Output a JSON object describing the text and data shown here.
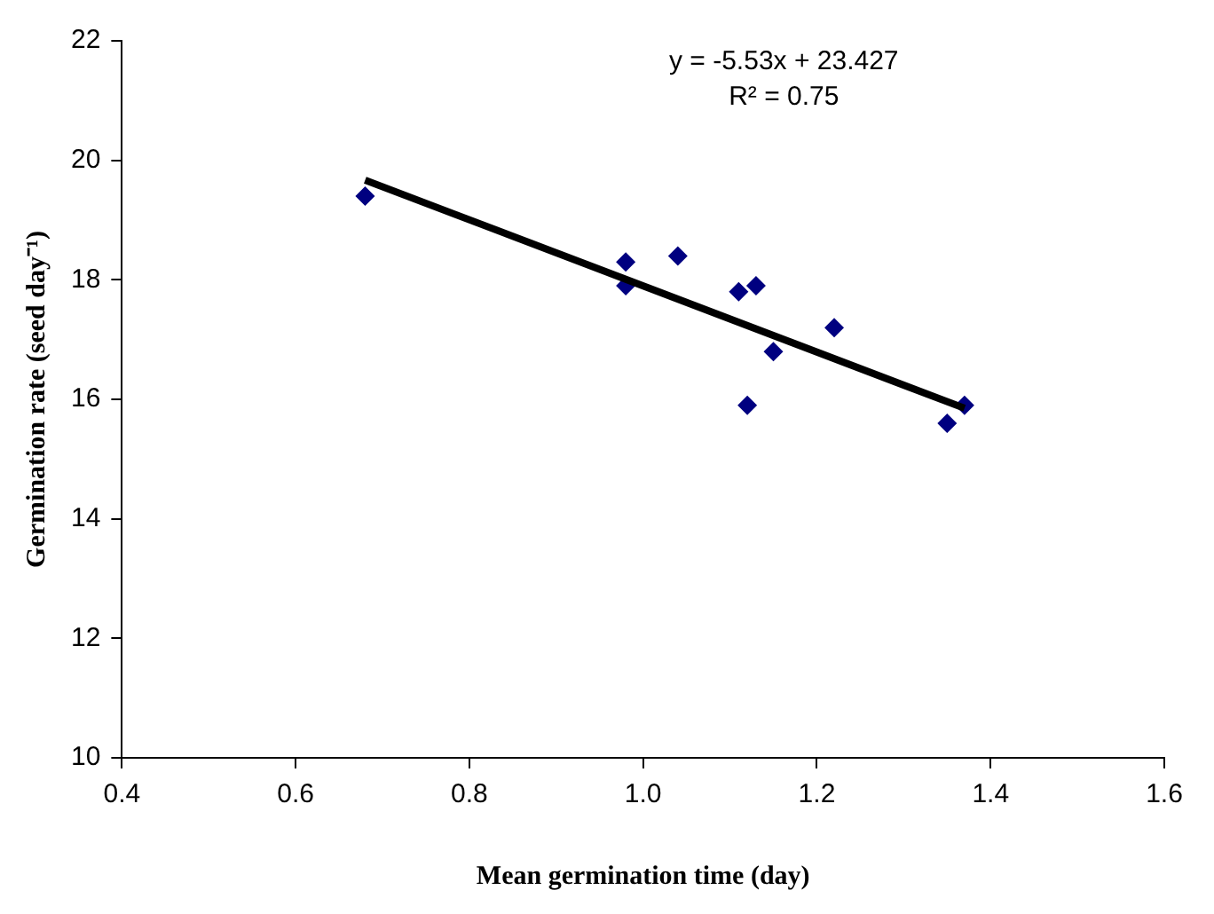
{
  "chart_data": {
    "type": "scatter",
    "xlabel": "Mean germination time (day)",
    "ylabel": "Germination rate (seed day⁻¹)",
    "annotations": [
      "y = -5.53x + 23.427",
      "R² = 0.75"
    ],
    "xlim": [
      0.4,
      1.6
    ],
    "xticks": [
      {
        "value": 0.4,
        "label": "0.4"
      },
      {
        "value": 0.6,
        "label": "0.6"
      },
      {
        "value": 0.8,
        "label": "0.8"
      },
      {
        "value": 1.0,
        "label": "1.0"
      },
      {
        "value": 1.2,
        "label": "1.2"
      },
      {
        "value": 1.4,
        "label": "1.4"
      },
      {
        "value": 1.6,
        "label": "1.6"
      }
    ],
    "ylim": [
      10,
      22
    ],
    "yticks": [
      10,
      12,
      14,
      16,
      18,
      20,
      22
    ],
    "grid": false,
    "legend": false,
    "marker": "diamond",
    "series": [
      {
        "type": "scatter",
        "color": "#000080",
        "x": [
          0.68,
          0.98,
          0.98,
          1.04,
          1.11,
          1.13,
          1.15,
          1.22,
          1.12,
          1.35,
          1.37
        ],
        "values": [
          19.4,
          18.3,
          17.9,
          18.4,
          17.8,
          17.9,
          16.8,
          17.2,
          15.9,
          15.6,
          15.9
        ]
      },
      {
        "type": "line",
        "color": "#000000",
        "x": [
          0.68,
          1.37
        ],
        "values": [
          19.67,
          15.85
        ],
        "marker": "none",
        "line_style": "solid"
      }
    ]
  }
}
